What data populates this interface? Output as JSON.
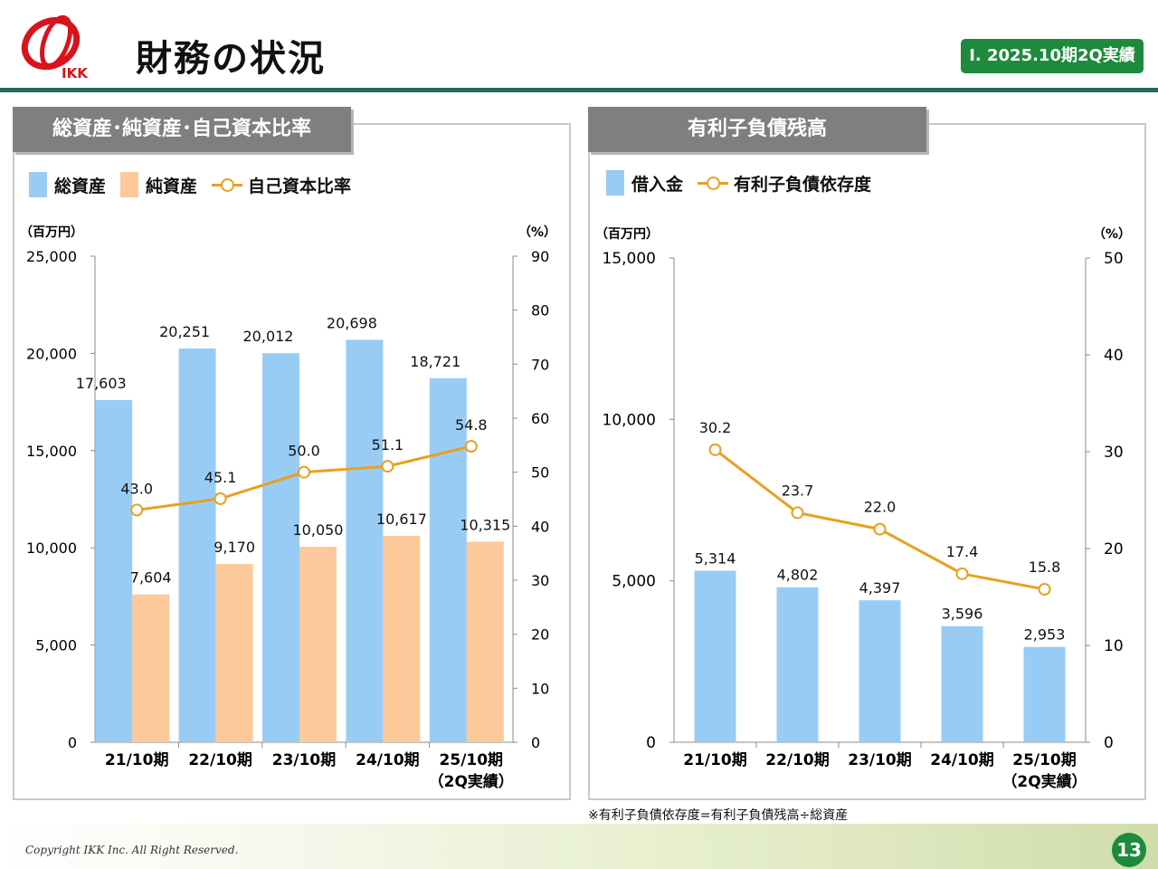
{
  "header": {
    "logo_text": "IKK",
    "title": "財務の状況",
    "section_badge": "Ⅰ. 2025.10期2Q実績"
  },
  "colors": {
    "bar_blue": "#99ccf5",
    "bar_peach": "#fcc99a",
    "line_orange": "#e8a020",
    "accent_green": "#1e8a3c",
    "rule_teal": "#1f6b62",
    "panel_head_gray": "#7f7f7f"
  },
  "left_panel": {
    "heading": "総資産･純資産･自己資本比率",
    "legend": [
      "総資産",
      "純資産",
      "自己資本比率"
    ],
    "left_unit": "（百万円）",
    "right_unit": "（%）"
  },
  "right_panel": {
    "heading": "有利子負債残高",
    "legend": [
      "借入金",
      "有利子負債依存度"
    ],
    "left_unit": "（百万円）",
    "right_unit": "（%）"
  },
  "chart_data": [
    {
      "type": "bar",
      "categories": [
        "21/10期",
        "22/10期",
        "23/10期",
        "24/10期",
        "25/10期"
      ],
      "category_sublabels": [
        "",
        "",
        "",
        "",
        "（2Q実績）"
      ],
      "series": [
        {
          "name": "総資産",
          "type": "bar",
          "axis": "left",
          "values": [
            17603,
            20251,
            20012,
            20698,
            18721
          ],
          "labels": [
            "17,603",
            "20,251",
            "20,012",
            "20,698",
            "18,721"
          ]
        },
        {
          "name": "純資産",
          "type": "bar",
          "axis": "left",
          "values": [
            7604,
            9170,
            10050,
            10617,
            10315
          ],
          "labels": [
            "7,604",
            "9,170",
            "10,050",
            "10,617",
            "10,315"
          ]
        },
        {
          "name": "自己資本比率",
          "type": "line",
          "axis": "right",
          "values": [
            43.0,
            45.1,
            50.0,
            51.1,
            54.8
          ],
          "labels": [
            "43.0",
            "45.1",
            "50.0",
            "51.1",
            "54.8"
          ]
        }
      ],
      "ylim": [
        0,
        25000
      ],
      "y_ticks": [
        "0",
        "5,000",
        "10,000",
        "15,000",
        "20,000",
        "25,000"
      ],
      "y2lim": [
        0,
        90
      ],
      "y2_ticks": [
        "0",
        "10",
        "20",
        "30",
        "40",
        "50",
        "60",
        "70",
        "80",
        "90"
      ],
      "ylabel": "（百万円）",
      "y2label": "（%）",
      "legend": "top-left",
      "grid": false
    },
    {
      "type": "bar",
      "categories": [
        "21/10期",
        "22/10期",
        "23/10期",
        "24/10期",
        "25/10期"
      ],
      "category_sublabels": [
        "",
        "",
        "",
        "",
        "（2Q実績）"
      ],
      "series": [
        {
          "name": "借入金",
          "type": "bar",
          "axis": "left",
          "values": [
            5314,
            4802,
            4397,
            3596,
            2953
          ],
          "labels": [
            "5,314",
            "4,802",
            "4,397",
            "3,596",
            "2,953"
          ]
        },
        {
          "name": "有利子負債依存度",
          "type": "line",
          "axis": "right",
          "values": [
            30.2,
            23.7,
            22.0,
            17.4,
            15.8
          ],
          "labels": [
            "30.2",
            "23.7",
            "22.0",
            "17.4",
            "15.8"
          ]
        }
      ],
      "ylim": [
        0,
        15000
      ],
      "y_ticks": [
        "0",
        "5,000",
        "10,000",
        "15,000"
      ],
      "y2lim": [
        0,
        50
      ],
      "y2_ticks": [
        "0",
        "10",
        "20",
        "30",
        "40",
        "50"
      ],
      "ylabel": "（百万円）",
      "y2label": "（%）",
      "legend": "top-left",
      "grid": false
    }
  ],
  "note": "※有利子負債依存度=有利子負債残高÷総資産",
  "footer": {
    "copyright": "Copyright IKK Inc. All Right Reserved.",
    "page_number": "13"
  }
}
